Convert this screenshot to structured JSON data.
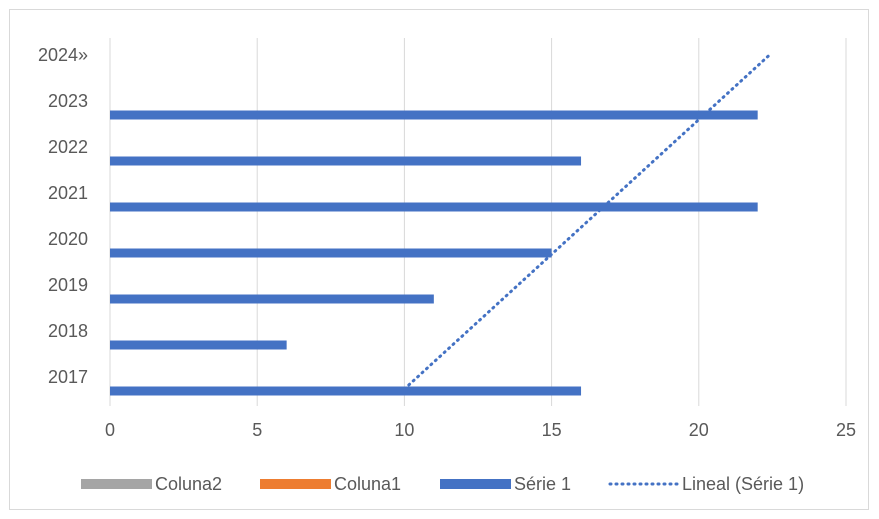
{
  "chart_data": {
    "type": "bar",
    "orientation": "horizontal",
    "categories": [
      "2017",
      "2018",
      "2019",
      "2020",
      "2021",
      "2022",
      "2023",
      "2024»"
    ],
    "series": [
      {
        "name": "Coluna2",
        "color": "#a5a5a5",
        "values": [
          null,
          null,
          null,
          null,
          null,
          null,
          null,
          null
        ]
      },
      {
        "name": "Coluna1",
        "color": "#ed7d31",
        "values": [
          null,
          null,
          null,
          null,
          null,
          null,
          null,
          null
        ]
      },
      {
        "name": "Série 1",
        "color": "#4472c4",
        "values": [
          16,
          6,
          11,
          15,
          22,
          16,
          22,
          null
        ]
      }
    ],
    "trendline": {
      "name": "Lineal (Série 1)",
      "type": "linear",
      "style": "dotted",
      "color": "#4472c4",
      "from": {
        "category": "2017",
        "value": 10.0
      },
      "to": {
        "category": "2024»",
        "value": 22.4
      }
    },
    "xlim": [
      0,
      25
    ],
    "xticks": [
      0,
      5,
      10,
      15,
      20,
      25
    ],
    "grid": true,
    "legend_position": "bottom",
    "legend": [
      "Coluna2",
      "Coluna1",
      "Série 1",
      "Lineal (Série 1)"
    ]
  }
}
